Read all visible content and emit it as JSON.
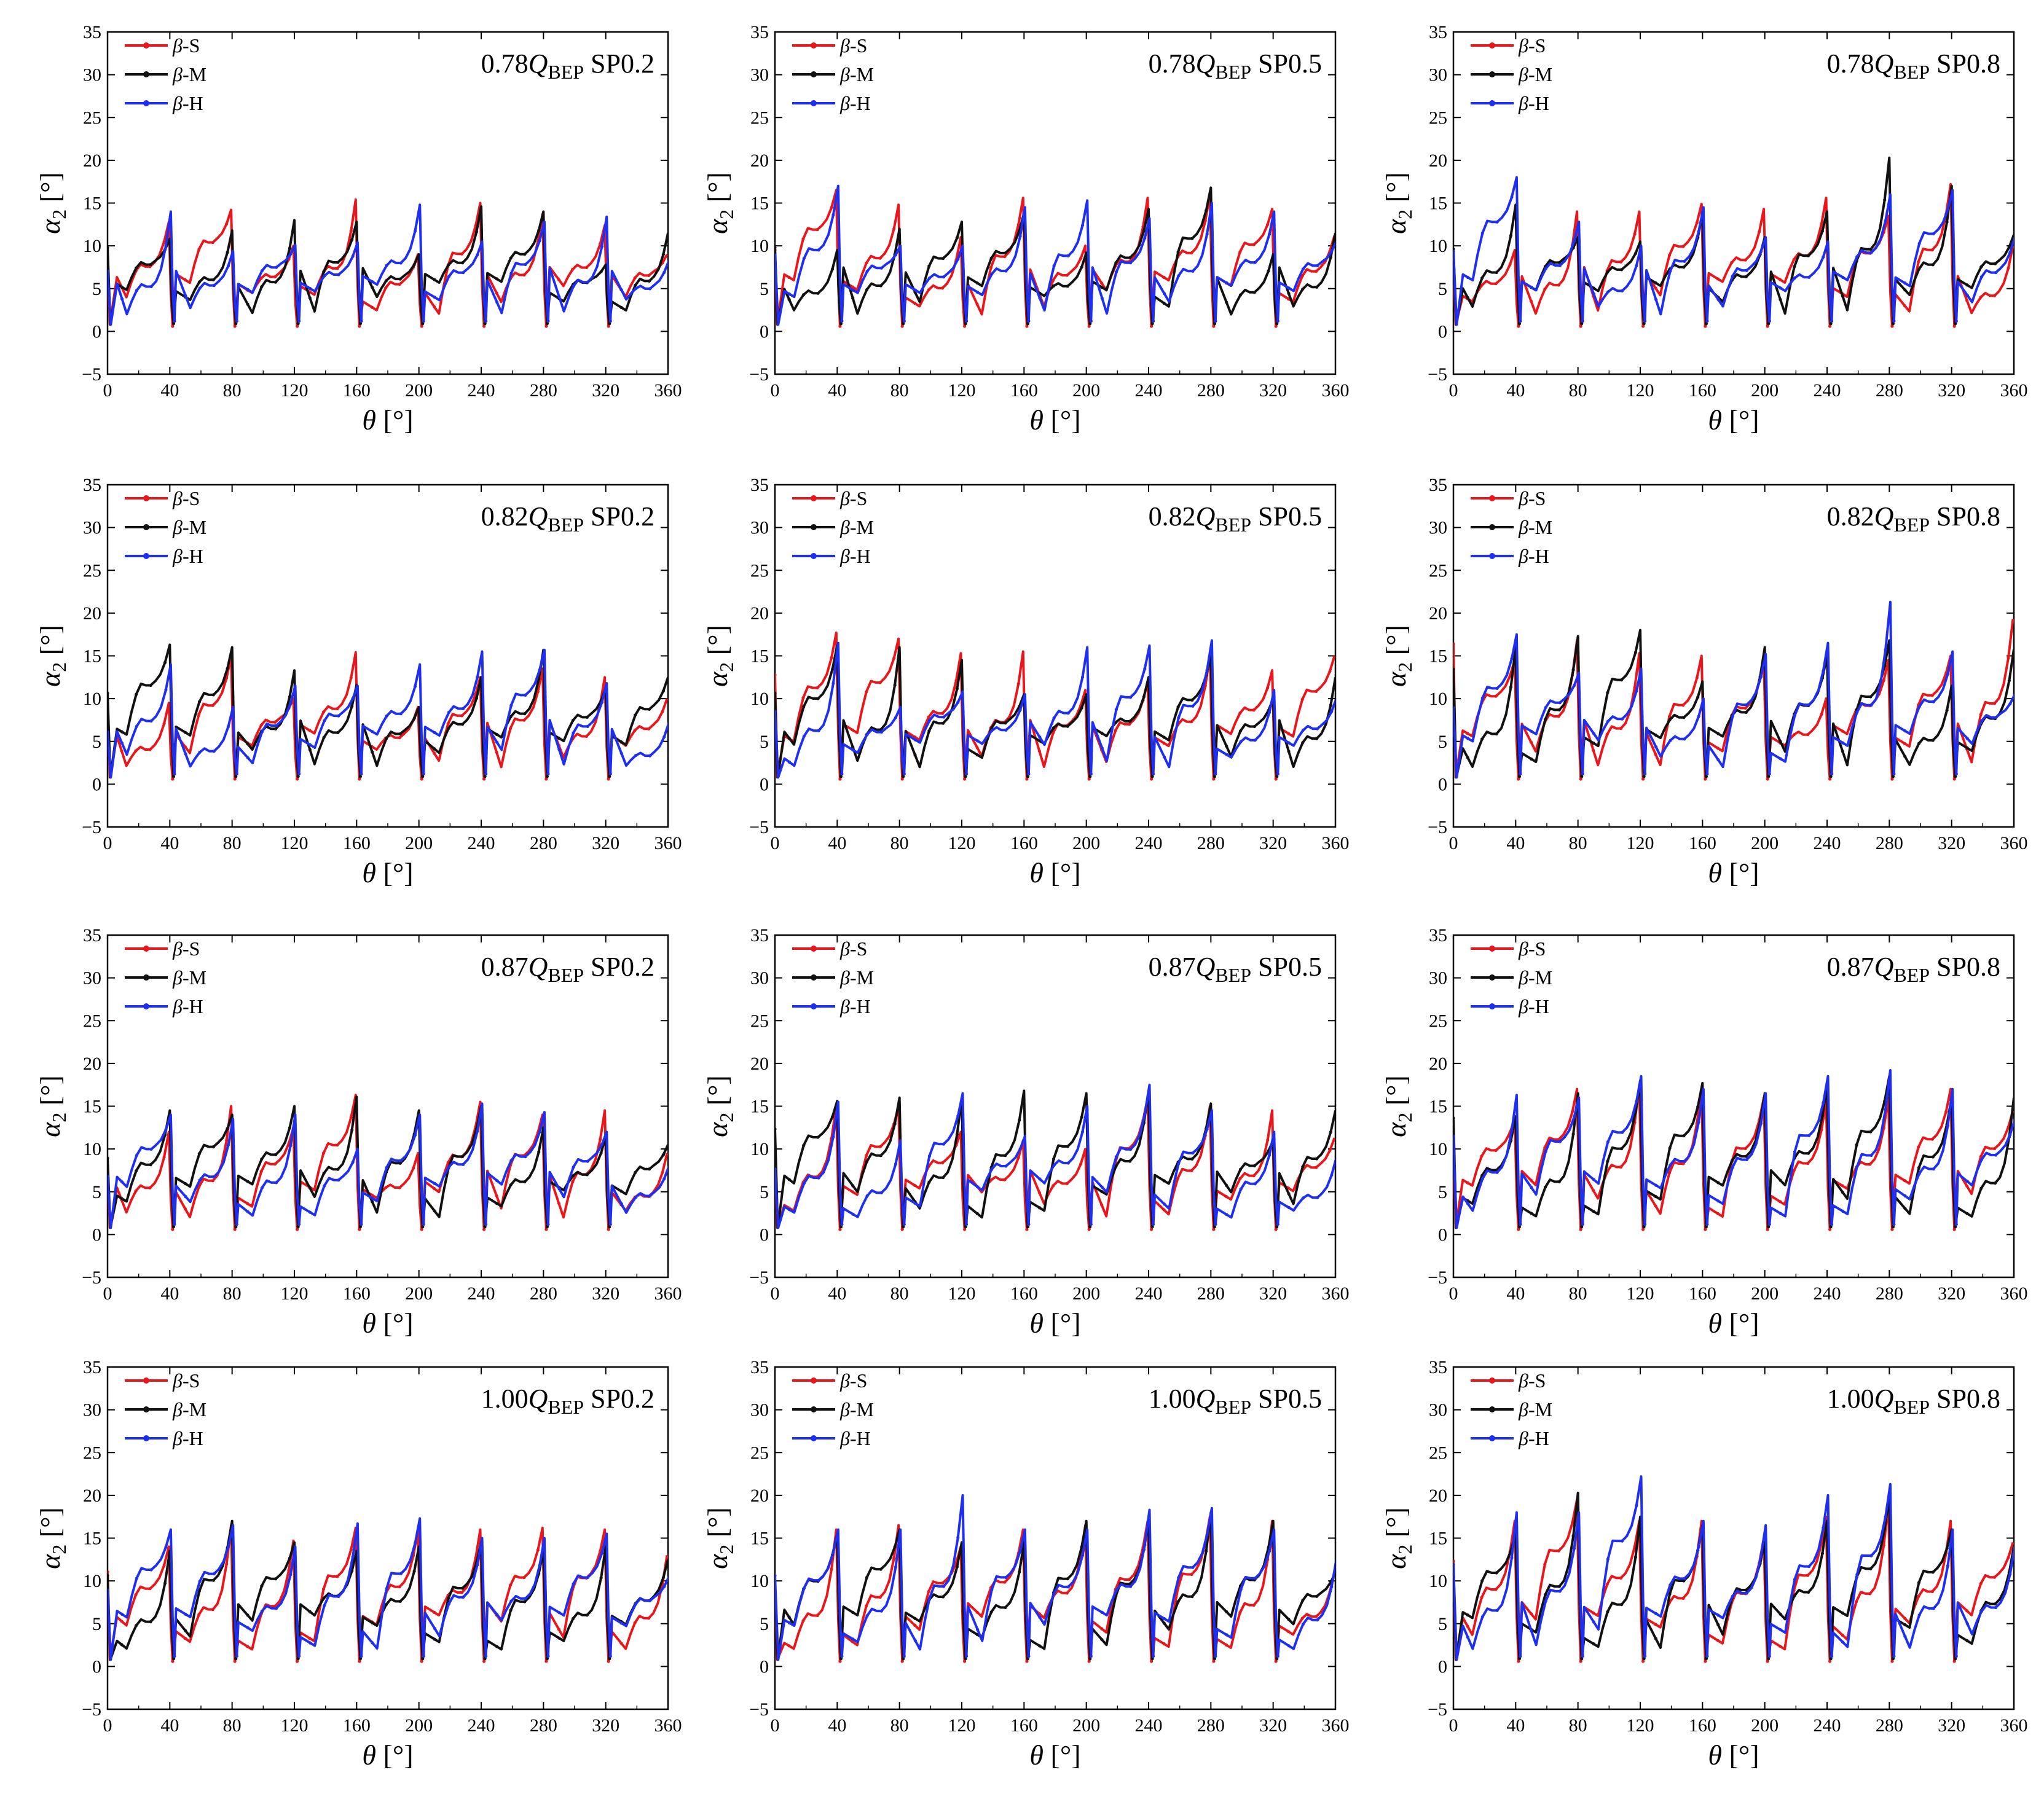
{
  "figure": {
    "rows": [
      "0.78",
      "0.82",
      "0.87",
      "1.00"
    ],
    "cols": [
      "SP0.2",
      "SP0.5",
      "SP0.8"
    ]
  },
  "chart_data": {
    "type": "line",
    "layout": "4x3 small multiples",
    "xlabel": "θ [°]",
    "ylabel": "α2 [°]",
    "xlim": [
      0,
      360
    ],
    "ylim": [
      -5,
      35
    ],
    "xticks": [
      0,
      40,
      80,
      120,
      160,
      200,
      240,
      280,
      320,
      360
    ],
    "yticks": [
      -5,
      0,
      5,
      10,
      15,
      20,
      25,
      30,
      35
    ],
    "legend": [
      "β-S",
      "β-M",
      "β-H"
    ],
    "legend_position": "top-left",
    "series_colors": {
      "β-S": "#e8171c",
      "β-M": "#111111",
      "β-H": "#1f2ff0"
    },
    "title_template": "{flow}QBEP {sp}",
    "title_sub": "BEP",
    "note": "Each panel shows nine passage cycles of 40° with peaks near each 40° multiple and sharp drops to near 0° following each peak.",
    "panels": [
      {
        "flow": "0.78",
        "sp": "SP0.2",
        "peaks": {
          "β-S": [
            12.8,
            14.2,
            10.0,
            15.4,
            9.0,
            15.0,
            13.7,
            12.4,
            9.0
          ],
          "β-M": [
            10.8,
            11.8,
            13.0,
            12.8,
            9.0,
            14.6,
            14.0,
            7.8,
            11.5
          ],
          "β-H": [
            14.0,
            9.4,
            10.1,
            10.4,
            14.8,
            10.5,
            12.8,
            13.4,
            8.3
          ]
        }
      },
      {
        "flow": "0.78",
        "sp": "SP0.5",
        "peaks": {
          "β-S": [
            16.5,
            14.8,
            11.0,
            15.6,
            10.0,
            15.6,
            16.0,
            14.3,
            11.2
          ],
          "β-M": [
            9.5,
            12.0,
            12.8,
            13.8,
            9.2,
            14.3,
            16.8,
            9.0,
            11.5
          ],
          "β-H": [
            17.0,
            10.0,
            10.0,
            14.5,
            15.3,
            13.2,
            15.0,
            14.0,
            10.5
          ]
        }
      },
      {
        "flow": "0.78",
        "sp": "SP0.8",
        "peaks": {
          "β-S": [
            9.5,
            14.0,
            14.0,
            14.9,
            14.3,
            15.6,
            13.5,
            17.2,
            10.0
          ],
          "β-M": [
            14.8,
            11.0,
            10.5,
            13.8,
            11.0,
            14.0,
            20.3,
            17.0,
            11.3
          ],
          "β-H": [
            18.0,
            12.8,
            10.0,
            14.5,
            11.0,
            10.5,
            16.0,
            16.5,
            11.0
          ]
        }
      },
      {
        "flow": "0.82",
        "sp": "SP0.2",
        "peaks": {
          "β-S": [
            9.5,
            15.0,
            10.0,
            15.4,
            9.0,
            12.5,
            13.5,
            12.5,
            10.0
          ],
          "β-M": [
            16.3,
            16.0,
            13.3,
            11.6,
            9.0,
            12.5,
            15.7,
            11.2,
            12.5
          ],
          "β-H": [
            14.0,
            9.0,
            11.5,
            11.5,
            14.0,
            15.5,
            15.7,
            11.8,
            7.2
          ]
        }
      },
      {
        "flow": "0.82",
        "sp": "SP0.5",
        "peaks": {
          "β-S": [
            17.7,
            17.0,
            15.3,
            15.5,
            11.0,
            12.0,
            15.0,
            13.3,
            15.0
          ],
          "β-M": [
            16.2,
            16.0,
            14.5,
            10.5,
            10.5,
            12.5,
            15.0,
            10.0,
            12.5
          ],
          "β-H": [
            16.5,
            9.0,
            10.8,
            10.5,
            16.0,
            16.2,
            16.8,
            11.0,
            10.0
          ]
        }
      },
      {
        "flow": "0.82",
        "sp": "SP0.8",
        "peaks": {
          "β-S": [
            14.5,
            16.8,
            15.3,
            15.0,
            14.5,
            10.0,
            14.5,
            15.0,
            19.3
          ],
          "β-M": [
            16.0,
            17.3,
            18.0,
            12.0,
            16.0,
            15.0,
            16.8,
            11.5,
            15.8
          ],
          "β-H": [
            17.5,
            13.0,
            13.5,
            10.0,
            15.2,
            16.5,
            21.3,
            15.5,
            10.5
          ]
        }
      },
      {
        "flow": "0.87",
        "sp": "SP0.2",
        "peaks": {
          "β-S": [
            12.0,
            15.0,
            12.5,
            16.3,
            9.5,
            15.5,
            14.0,
            14.5,
            9.5
          ],
          "β-M": [
            14.5,
            14.0,
            15.0,
            16.1,
            14.5,
            15.0,
            12.5,
            11.5,
            10.5
          ],
          "β-H": [
            14.0,
            13.5,
            14.0,
            10.0,
            14.0,
            15.3,
            14.3,
            12.0,
            8.0
          ]
        }
      },
      {
        "flow": "0.87",
        "sp": "SP0.5",
        "peaks": {
          "β-S": [
            15.0,
            15.0,
            12.0,
            11.0,
            10.0,
            16.0,
            15.0,
            14.5,
            11.3
          ],
          "β-M": [
            15.6,
            16.0,
            16.0,
            16.8,
            16.5,
            16.8,
            15.3,
            11.0,
            14.5
          ],
          "β-H": [
            15.5,
            11.0,
            16.5,
            11.5,
            15.0,
            17.5,
            14.5,
            12.0,
            9.0
          ]
        }
      },
      {
        "flow": "0.87",
        "sp": "SP0.8",
        "peaks": {
          "β-S": [
            13.5,
            17.0,
            17.5,
            17.0,
            16.0,
            15.5,
            16.0,
            17.0,
            14.5
          ],
          "β-M": [
            13.8,
            16.5,
            18.0,
            17.7,
            16.5,
            17.5,
            18.5,
            16.0,
            16.0
          ],
          "β-H": [
            16.3,
            16.0,
            18.5,
            17.0,
            16.5,
            18.5,
            19.2,
            17.0,
            13.5
          ]
        }
      },
      {
        "flow": "1.00",
        "sp": "SP0.2",
        "peaks": {
          "β-S": [
            14.0,
            16.5,
            14.7,
            16.2,
            16.0,
            16.0,
            16.2,
            16.0,
            13.0
          ],
          "β-M": [
            13.5,
            17.0,
            14.5,
            13.5,
            14.0,
            14.5,
            13.5,
            14.0,
            12.5
          ],
          "β-H": [
            16.0,
            16.5,
            14.0,
            16.7,
            17.3,
            15.0,
            15.0,
            15.5,
            10.5
          ]
        }
      },
      {
        "flow": "1.00",
        "sp": "SP0.5",
        "peaks": {
          "β-S": [
            16.0,
            16.5,
            14.0,
            16.0,
            16.5,
            17.0,
            17.5,
            17.0,
            11.0
          ],
          "β-M": [
            15.5,
            16.0,
            14.5,
            14.5,
            17.0,
            17.0,
            18.0,
            17.0,
            11.0
          ],
          "β-H": [
            16.0,
            16.0,
            20.0,
            16.0,
            16.0,
            18.3,
            18.5,
            16.0,
            12.5
          ]
        }
      },
      {
        "flow": "1.00",
        "sp": "SP0.8",
        "peaks": {
          "β-S": [
            17.0,
            19.5,
            17.0,
            17.0,
            15.0,
            17.5,
            19.0,
            17.0,
            14.5
          ],
          "β-M": [
            15.5,
            20.3,
            17.5,
            16.5,
            14.5,
            17.0,
            20.0,
            16.0,
            14.0
          ],
          "β-H": [
            18.0,
            18.0,
            22.2,
            17.0,
            16.5,
            20.0,
            21.3,
            16.0,
            14.0
          ]
        }
      }
    ]
  }
}
